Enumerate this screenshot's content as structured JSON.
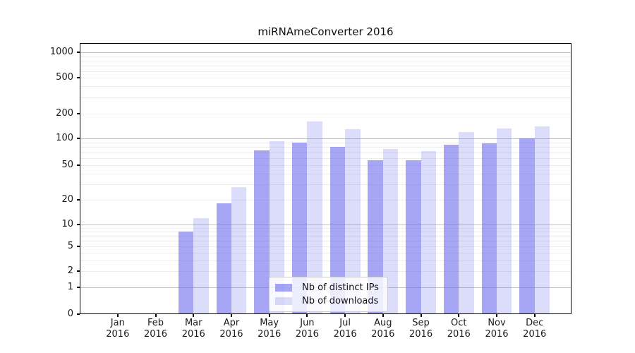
{
  "title": "miRNAmeConverter 2016",
  "colors": {
    "bar_dark": "rgba(102,102,238,0.58)",
    "bar_light": "rgba(102,102,238,0.23)",
    "grid_major": "#c0c0c0",
    "grid_minor": "#ececec",
    "axis": "#000000",
    "legend_border": "#cccccc"
  },
  "chart_data": {
    "type": "bar",
    "title": "miRNAmeConverter 2016",
    "yscale": "symlog",
    "ylim": [
      0,
      1000
    ],
    "grid": true,
    "legend_position": "inside lower-center",
    "months": [
      "Jan",
      "Feb",
      "Mar",
      "Apr",
      "May",
      "Jun",
      "Jul",
      "Aug",
      "Sep",
      "Oct",
      "Nov",
      "Dec"
    ],
    "year": "2016",
    "ytick_labels": [
      "0",
      "1",
      "2",
      "5",
      "10",
      "20",
      "50",
      "100",
      "200",
      "500",
      "1000"
    ],
    "ytick_values": [
      0,
      1,
      2,
      5,
      10,
      20,
      50,
      100,
      200,
      500,
      1000
    ],
    "minor_grid_values": [
      2,
      3,
      4,
      5,
      6,
      7,
      8,
      9,
      20,
      30,
      40,
      50,
      60,
      70,
      80,
      90,
      200,
      300,
      400,
      500,
      600,
      700,
      800,
      900
    ],
    "major_grid_values": [
      1,
      10,
      100,
      1000
    ],
    "series": [
      {
        "name": "Nb of distinct IPs",
        "color": "rgba(102,102,238,0.58)",
        "values": [
          0,
          0,
          8,
          18,
          74,
          90,
          80,
          57,
          57,
          85,
          88,
          100
        ]
      },
      {
        "name": "Nb of downloads",
        "color": "rgba(102,102,238,0.23)",
        "values": [
          0,
          0,
          12,
          28,
          93,
          160,
          130,
          76,
          72,
          120,
          133,
          139
        ]
      }
    ]
  }
}
